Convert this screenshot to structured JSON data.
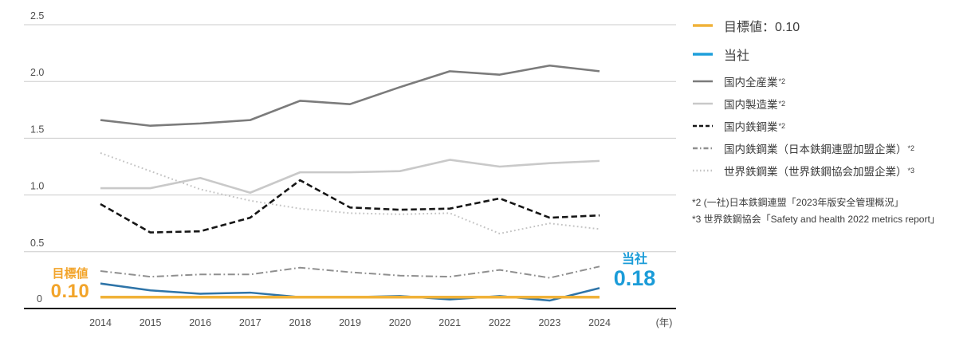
{
  "chart_data": {
    "type": "line",
    "x_labels": [
      "2014",
      "2015",
      "2016",
      "2017",
      "2018",
      "2019",
      "2020",
      "2021",
      "2022",
      "2023",
      "2024"
    ],
    "x_axis_suffix": "(年)",
    "ylim": [
      0,
      2.5
    ],
    "grid": true,
    "legend_position": "right",
    "yticks": [
      {
        "label": "0",
        "value": 0
      },
      {
        "label": "0.5",
        "value": 0.5
      },
      {
        "label": "1.0",
        "value": 1.0
      },
      {
        "label": "1.5",
        "value": 1.5
      },
      {
        "label": "2.0",
        "value": 2.0
      },
      {
        "label": "2.5",
        "value": 2.5
      }
    ],
    "series": [
      {
        "id": "target",
        "name": "目標値：0.10",
        "sup": "",
        "color": "#F0B239",
        "style": "solid",
        "width": 3.5,
        "values": [
          0.1,
          0.1,
          0.1,
          0.1,
          0.1,
          0.1,
          0.1,
          0.1,
          0.1,
          0.1,
          0.1
        ]
      },
      {
        "id": "company",
        "name": "当社",
        "sup": "",
        "color": "#2E74A8",
        "style": "solid",
        "width": 2.5,
        "values": [
          0.22,
          0.16,
          0.13,
          0.14,
          0.1,
          0.1,
          0.11,
          0.08,
          0.11,
          0.07,
          0.18
        ]
      },
      {
        "id": "domestic-all-industries",
        "name": "国内全産業",
        "sup": "*2",
        "color": "#7B7B7B",
        "style": "solid",
        "width": 2.6,
        "values": [
          1.66,
          1.61,
          1.63,
          1.66,
          1.83,
          1.8,
          1.95,
          2.09,
          2.06,
          2.14,
          2.09
        ]
      },
      {
        "id": "domestic-manufacturing",
        "name": "国内製造業",
        "sup": "*2",
        "color": "#C9C9C9",
        "style": "solid",
        "width": 2.6,
        "values": [
          1.06,
          1.06,
          1.15,
          1.02,
          1.2,
          1.2,
          1.21,
          1.31,
          1.25,
          1.28,
          1.3
        ]
      },
      {
        "id": "domestic-steel",
        "name": "国内鉄鋼業",
        "sup": "*2",
        "color": "#161616",
        "style": "dashed",
        "width": 2.6,
        "values": [
          0.92,
          0.67,
          0.68,
          0.8,
          1.13,
          0.89,
          0.87,
          0.88,
          0.97,
          0.8,
          0.82
        ]
      },
      {
        "id": "domestic-steel-jisf",
        "name": "国内鉄鋼業（日本鉄鋼連盟加盟企業）",
        "sup": "*2",
        "color": "#8F8F8F",
        "style": "dashdot",
        "width": 2,
        "values": [
          0.33,
          0.28,
          0.3,
          0.3,
          0.36,
          0.32,
          0.29,
          0.28,
          0.34,
          0.27,
          0.37
        ]
      },
      {
        "id": "world-steel",
        "name": "世界鉄鋼業（世界鉄鋼協会加盟企業）",
        "sup": "*3",
        "color": "#C3C3C3",
        "style": "dotted",
        "width": 2,
        "values": [
          1.37,
          1.21,
          1.05,
          0.95,
          0.88,
          0.84,
          0.83,
          0.84,
          0.66,
          0.75,
          0.7
        ]
      }
    ],
    "annotations": {
      "target": {
        "label": "目標値",
        "value": "0.10",
        "color": "#F2A42A"
      },
      "company": {
        "label": "当社",
        "value": "0.18",
        "color": "#1B9CD8"
      }
    }
  },
  "legend": {
    "items": [
      {
        "series": 0
      },
      {
        "series": 1,
        "swatch_color": "#1E9FDB"
      },
      {
        "series": 2
      },
      {
        "series": 3
      },
      {
        "series": 4
      },
      {
        "series": 5
      },
      {
        "series": 6
      }
    ]
  },
  "footnotes": [
    "*2 (一社)日本鉄鋼連盟「2023年版安全管理概況」",
    "*3 世界鉄鋼協会「Safety and health 2022 metrics report」"
  ]
}
